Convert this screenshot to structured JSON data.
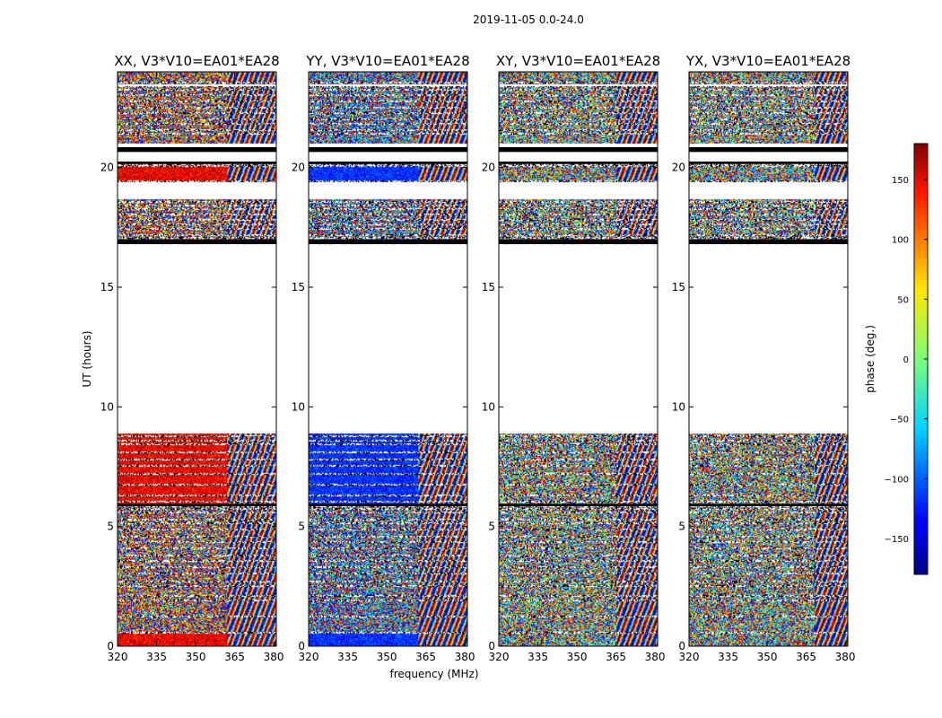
{
  "figure": {
    "suptitle": "2019-11-05 0.0-24.0",
    "xlabel": "frequency (MHz)",
    "ylabel": "UT (hours)"
  },
  "chart_data": {
    "type": "heatmap",
    "xlim": [
      320,
      381
    ],
    "ylim": [
      0,
      24
    ],
    "x_ticks": [
      320,
      335,
      350,
      365,
      380
    ],
    "y_ticks": [
      0,
      5,
      10,
      15,
      20
    ],
    "colorbar": {
      "label": "phase (deg.)",
      "range": [
        -180,
        180
      ],
      "ticks": [
        150,
        100,
        50,
        0,
        -50,
        -100,
        -150
      ],
      "tick_labels": [
        "150",
        "100",
        "50",
        "0",
        "−50",
        "−100",
        "−150"
      ],
      "colormap": "jet"
    },
    "data_intervals_ut": [
      [
        0.0,
        8.9
      ],
      [
        16.8,
        18.7
      ],
      [
        19.4,
        20.2
      ],
      [
        21.0,
        23.4
      ],
      [
        23.5,
        24.0
      ]
    ],
    "flag_lines_ut": [
      0.55,
      1.25,
      1.9,
      2.1,
      2.5,
      2.7,
      3.05,
      3.3,
      3.55,
      3.8,
      4.1,
      4.35,
      4.6,
      4.9,
      5.15,
      5.3,
      5.6,
      5.75,
      5.85,
      6.05,
      6.3,
      6.75,
      7.2,
      7.55,
      7.8,
      8.1,
      8.45,
      8.6,
      8.8,
      16.85,
      16.95,
      17.1,
      17.2,
      17.45,
      17.65,
      17.85,
      18.05,
      18.3,
      18.45,
      18.6,
      19.45,
      20.15,
      20.1,
      20.7,
      20.8,
      21.45,
      21.6,
      21.85,
      22.05,
      22.3,
      22.55,
      22.8,
      23.05,
      23.3,
      23.45,
      23.6
    ],
    "panels": [
      {
        "title": "XX, V3*V10=EA01*EA28",
        "mean_phase_deg": 140,
        "fringe_start_mhz": 362
      },
      {
        "title": "YY, V3*V10=EA01*EA28",
        "mean_phase_deg": -120,
        "fringe_start_mhz": 362
      },
      {
        "title": "XY, V3*V10=EA01*EA28",
        "mean_phase_deg": null,
        "fringe_start_mhz": 365
      },
      {
        "title": "YX, V3*V10=EA01*EA28",
        "mean_phase_deg": null,
        "fringe_start_mhz": 368
      }
    ]
  }
}
